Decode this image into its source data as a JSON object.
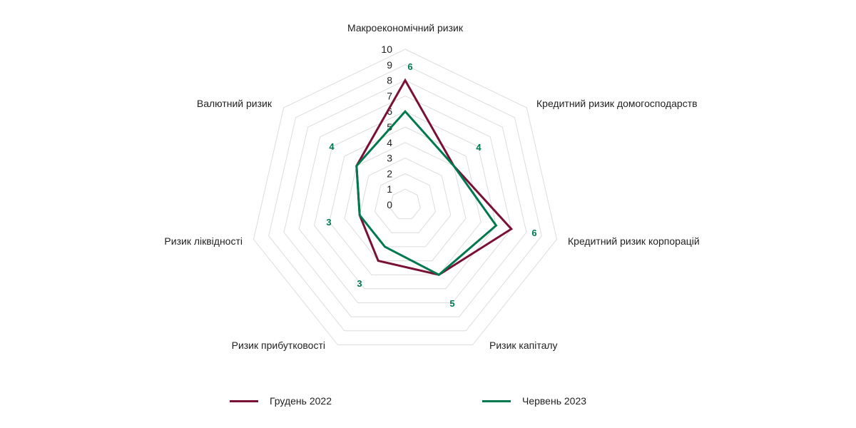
{
  "chart_data": {
    "type": "radar",
    "title": "",
    "axes": [
      "Макроекономічний ризик",
      "Кредитний ризик домогосподарств",
      "Кредитний ризик корпорацій",
      "Ризик капіталу",
      "Ризик прибутковості",
      "Ризик ліквідності",
      "Валютний ризик"
    ],
    "range": [
      0,
      10
    ],
    "ticks": [
      "0",
      "1",
      "2",
      "3",
      "4",
      "5",
      "6",
      "7",
      "8",
      "9",
      "10"
    ],
    "grid": true,
    "legend_position": "bottom",
    "series": [
      {
        "name": "Грудень 2022",
        "color": "#7a1035",
        "values": [
          8,
          4,
          7,
          5,
          4,
          3,
          4
        ]
      },
      {
        "name": "Червень 2023",
        "color": "#007a4d",
        "values": [
          6,
          4,
          6,
          5,
          3,
          3,
          4
        ],
        "data_labels": [
          "6",
          "4",
          "6",
          "5",
          "3",
          "3",
          "4"
        ]
      }
    ]
  }
}
